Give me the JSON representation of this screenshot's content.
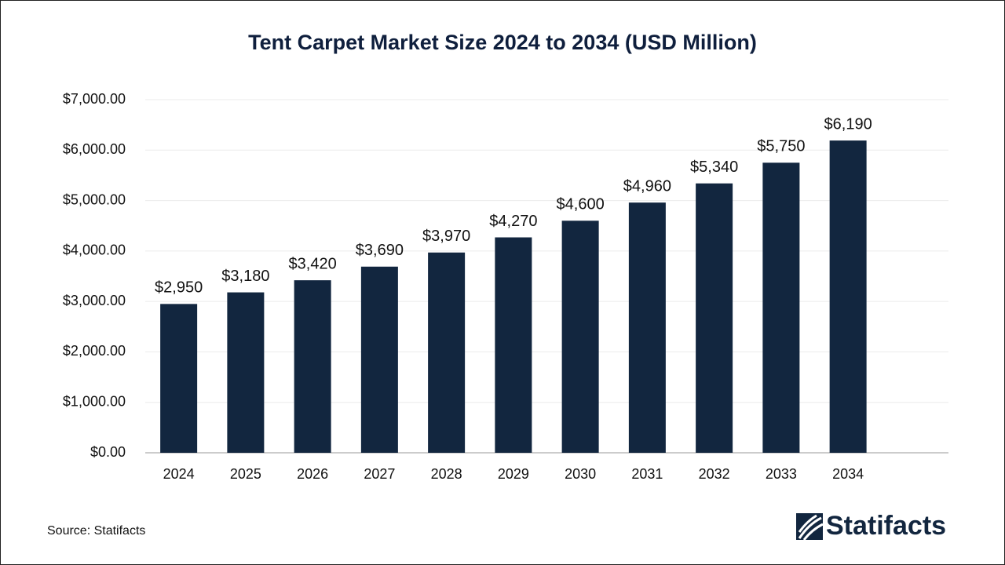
{
  "chart_data": {
    "type": "bar",
    "title": "Tent Carpet Market Size 2024 to 2034 (USD Million)",
    "categories": [
      "2024",
      "2025",
      "2026",
      "2027",
      "2028",
      "2029",
      "2030",
      "2031",
      "2032",
      "2033",
      "2034"
    ],
    "values": [
      2950,
      3180,
      3420,
      3690,
      3970,
      4270,
      4600,
      4960,
      5340,
      5750,
      6190
    ],
    "value_labels": [
      "$2,950",
      "$3,180",
      "$3,420",
      "$3,690",
      "$3,970",
      "$4,270",
      "$4,600",
      "$4,960",
      "$5,340",
      "$5,750",
      "$6,190"
    ],
    "color": "#12263f",
    "ylim": [
      0,
      7000
    ],
    "yticks": [
      {
        "value": 0,
        "label": "$0.00"
      },
      {
        "value": 1000,
        "label": "$1,000.00"
      },
      {
        "value": 2000,
        "label": "$2,000.00"
      },
      {
        "value": 3000,
        "label": "$3,000.00"
      },
      {
        "value": 4000,
        "label": "$4,000.00"
      },
      {
        "value": 5000,
        "label": "$5,000.00"
      },
      {
        "value": 6000,
        "label": "$6,000.00"
      },
      {
        "value": 7000,
        "label": "$7,000.00"
      }
    ],
    "grid": true
  },
  "source": "Source: Statifacts",
  "logo": "Statifacts"
}
